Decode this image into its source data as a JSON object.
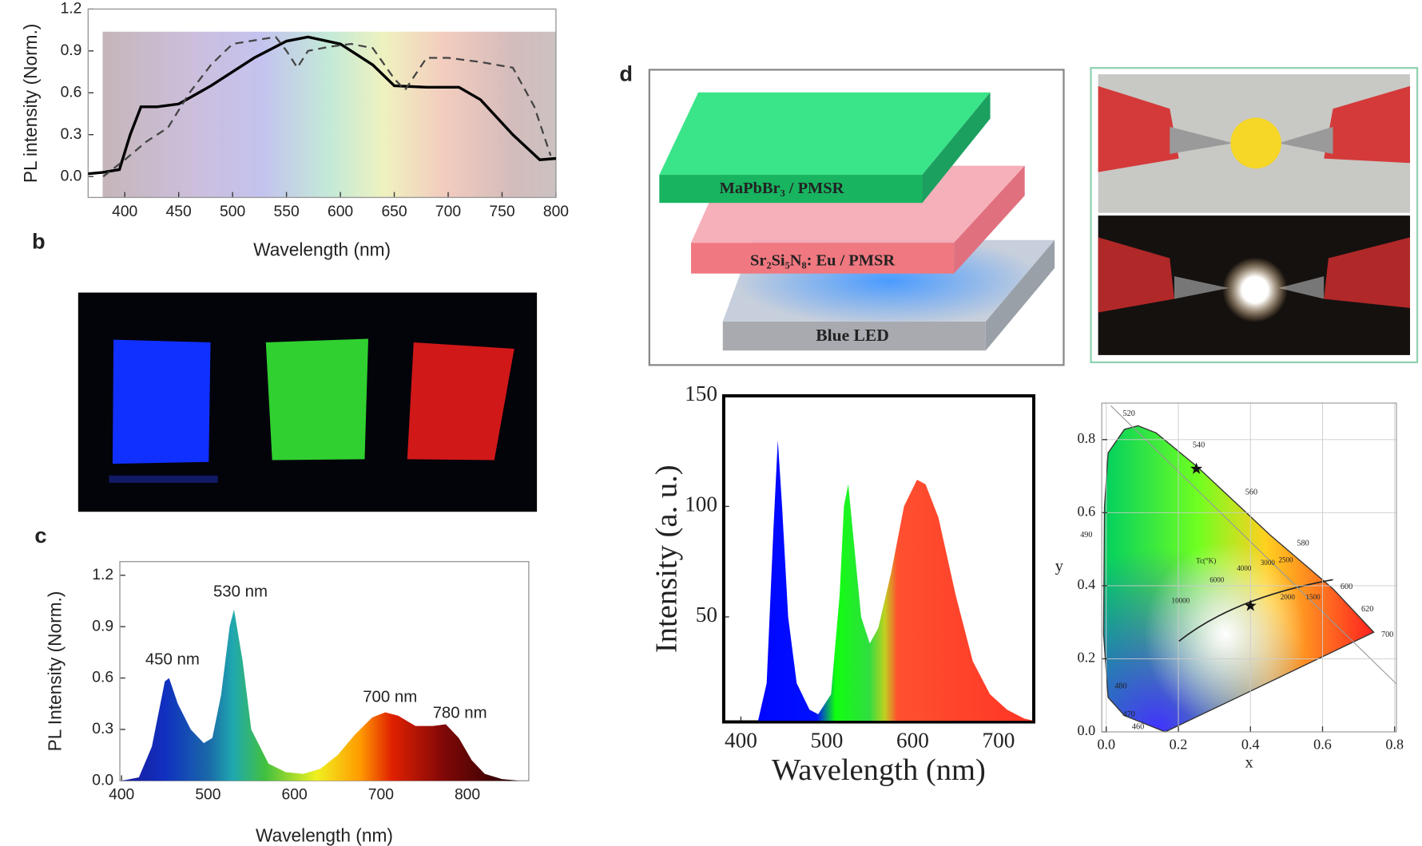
{
  "panel_labels": [
    "b",
    "c",
    "d"
  ],
  "diagram": {
    "layers": [
      "MaPbBr₃ / PMSR",
      "Sr₂Si₅N₈: Eu / PMSR",
      "Blue LED"
    ]
  },
  "chart_data": [
    {
      "type": "line",
      "x_label": "Wavelength (nm)",
      "y_label": "PL intensity (Norm.)",
      "xlim": [
        366,
        800
      ],
      "ylim": [
        -0.15,
        1.2
      ],
      "xticks": [
        400,
        450,
        500,
        550,
        600,
        650,
        700,
        750,
        800
      ],
      "yticks": [
        {
          "value": 0,
          "label": "0.0"
        },
        {
          "value": 0.3,
          "label": "0.3"
        },
        {
          "value": 0.6,
          "label": "0.6"
        },
        {
          "value": 0.9,
          "label": "0.9"
        },
        {
          "value": 1.2,
          "label": "1.2"
        }
      ],
      "series": [
        {
          "color": "#000000",
          "dash": false,
          "x": [
            366,
            380,
            395,
            405,
            415,
            430,
            450,
            480,
            520,
            550,
            570,
            600,
            630,
            650,
            680,
            710,
            730,
            760,
            785,
            800
          ],
          "values": [
            0.02,
            0.03,
            0.05,
            0.3,
            0.5,
            0.5,
            0.52,
            0.65,
            0.85,
            0.97,
            1.0,
            0.95,
            0.8,
            0.65,
            0.64,
            0.64,
            0.55,
            0.3,
            0.12,
            0.13
          ]
        },
        {
          "color": "#444444",
          "dash": true,
          "x": [
            380,
            400,
            420,
            440,
            460,
            480,
            500,
            540,
            550,
            560,
            570,
            590,
            610,
            630,
            650,
            660,
            680,
            700,
            730,
            760,
            780,
            795
          ],
          "values": [
            0.0,
            0.12,
            0.25,
            0.35,
            0.6,
            0.8,
            0.95,
            1.0,
            0.9,
            0.78,
            0.9,
            0.93,
            0.95,
            0.92,
            0.7,
            0.62,
            0.85,
            0.85,
            0.82,
            0.78,
            0.5,
            0.15
          ]
        }
      ]
    },
    {
      "type": "area",
      "x_label": "Wavelength (nm)",
      "y_label": "PL Intensity (Norm.)",
      "xlim": [
        398,
        871
      ],
      "ylim": [
        0,
        1.28
      ],
      "xticks": [
        400,
        500,
        600,
        700,
        800
      ],
      "yticks": [
        {
          "value": 0,
          "label": "0.0"
        },
        {
          "value": 0.3,
          "label": "0.3"
        },
        {
          "value": 0.6,
          "label": "0.6"
        },
        {
          "value": 0.9,
          "label": "0.9"
        },
        {
          "value": 1.2,
          "label": "1.2"
        }
      ],
      "annotations": [
        "450 nm",
        "530 nm",
        "700 nm",
        "780 nm"
      ],
      "x": [
        400,
        420,
        435,
        450,
        455,
        465,
        480,
        495,
        505,
        515,
        525,
        530,
        540,
        550,
        570,
        590,
        610,
        630,
        650,
        670,
        690,
        705,
        720,
        740,
        760,
        775,
        790,
        805,
        820,
        840,
        860
      ],
      "values": [
        0,
        0.02,
        0.2,
        0.58,
        0.6,
        0.45,
        0.3,
        0.22,
        0.25,
        0.5,
        0.9,
        1.0,
        0.7,
        0.3,
        0.1,
        0.05,
        0.04,
        0.07,
        0.15,
        0.27,
        0.37,
        0.4,
        0.38,
        0.32,
        0.32,
        0.33,
        0.25,
        0.12,
        0.04,
        0.01,
        0
      ]
    },
    {
      "type": "area",
      "x_label": "Wavelength (nm)",
      "y_label": "Intensity (a. u.)",
      "xlim": [
        380,
        741
      ],
      "ylim": [
        2.5,
        150
      ],
      "xticks": [
        400,
        500,
        600,
        700
      ],
      "yticks": [
        50,
        100,
        150
      ],
      "x": [
        380,
        420,
        430,
        438,
        443,
        448,
        455,
        465,
        480,
        490,
        505,
        515,
        520,
        525,
        530,
        540,
        550,
        560,
        575,
        590,
        605,
        615,
        630,
        650,
        670,
        690,
        710,
        730,
        741
      ],
      "values": [
        3,
        3,
        20,
        90,
        130,
        100,
        50,
        20,
        8,
        6,
        15,
        60,
        100,
        110,
        90,
        50,
        38,
        45,
        70,
        100,
        112,
        110,
        95,
        60,
        30,
        15,
        8,
        4,
        3
      ]
    },
    {
      "type": "scatter",
      "x_label": "x",
      "y_label": "y",
      "grid": true,
      "xlim": [
        -0.0125,
        0.805
      ],
      "ylim": [
        0,
        0.9
      ],
      "xticks": [
        {
          "value": 0,
          "label": "0.0"
        },
        {
          "value": 0.2,
          "label": "0.2"
        },
        {
          "value": 0.4,
          "label": "0.4"
        },
        {
          "value": 0.6,
          "label": "0.6"
        },
        {
          "value": 0.8,
          "label": "0.8"
        }
      ],
      "yticks": [
        {
          "value": 0,
          "label": "0.0"
        },
        {
          "value": 0.2,
          "label": "0.2"
        },
        {
          "value": 0.4,
          "label": "0.4"
        },
        {
          "value": 0.6,
          "label": "0.6"
        },
        {
          "value": 0.8,
          "label": "0.8"
        }
      ],
      "x": [
        0.25,
        0.4
      ],
      "values": [
        0.72,
        0.345
      ],
      "color": "#111111",
      "locus_labels": [
        "520",
        "540",
        "560",
        "580",
        "600",
        "620",
        "700",
        "490",
        "480",
        "470",
        "460"
      ],
      "cct_labels": [
        "Tc(°K)",
        "10000",
        "6000",
        "4000",
        "3000",
        "2500",
        "2000",
        "1500"
      ]
    }
  ]
}
